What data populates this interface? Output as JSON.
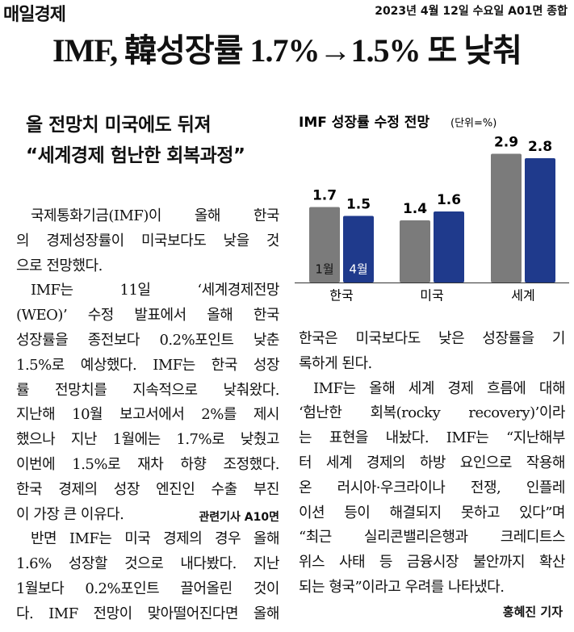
{
  "header": {
    "logo": "매일경제",
    "dateline": "2023년 4월 12일 수요일 A01면 종합"
  },
  "headline": "IMF, 韓성장률 1.7%→1.5% 또 낮춰",
  "subheads": [
    "올 전망치 미국에도 뒤져",
    "“세계경제 험난한 회복과정”"
  ],
  "body": {
    "left": [
      "국제통화기금(IMF)이 올해 한국",
      "의 경제성장률이 미국보다도 낮을 것",
      "으로 전망했다.",
      "IMF는 11일 ‘세계경제전망",
      "(WEO)’ 수정 발표에서 올해 한국",
      "성장률을 종전보다 0.2%포인트 낮춘",
      "1.5%로 예상했다. IMF는 한국 성장",
      "률 전망치를 지속적으로 낮춰왔다.",
      "지난해 10월 보고서에서 2%를 제시",
      "했으나 지난 1월에는 1.7%로 낮췄고",
      "이번에 1.5%로 재차 하향 조정했다.",
      "한국 경제의 성장 엔진인 수출 부진",
      "이 가장 큰 이유다.",
      "반면 IMF는 미국 경제의 경우 올해",
      "1.6% 성장할 것으로 내다봤다. 지난",
      "1월보다 0.2%포인트 끌어올린 것이",
      "다. IMF 전망이 맞아떨어진다면 올해"
    ],
    "related": "관련기사 A10면",
    "right": [
      "한국은 미국보다도 낮은 성장률을 기",
      "록하게 된다.",
      "IMF는 올해 세계 경제 흐름에 대해",
      "‘험난한 회복(rocky recovery)’이라",
      "는 표현을 내놨다. IMF는 “지난해부",
      "터 세계 경제의 하방 요인으로 작용해",
      "온 러시아·우크라이나 전쟁, 인플레",
      "이션 등이 해결되지 못하고 있다”며",
      "“최근 실리콘밸리은행과 크레디트스",
      "위스 사태 등 금융시장 불안까지 확산",
      "되는 형국”이라고 우려를 나타냈다."
    ],
    "byline": "홍혜진 기자"
  },
  "chart_data": {
    "type": "bar",
    "title": "IMF 성장률 수정 전망",
    "unit": "(단위=%)",
    "categories": [
      "한국",
      "미국",
      "세계"
    ],
    "series": [
      {
        "name": "1월",
        "color": "#7b7b7b",
        "values": [
          1.7,
          1.4,
          2.9
        ]
      },
      {
        "name": "4월",
        "color": "#1f3a8c",
        "values": [
          1.5,
          1.6,
          2.8
        ]
      }
    ]
  }
}
